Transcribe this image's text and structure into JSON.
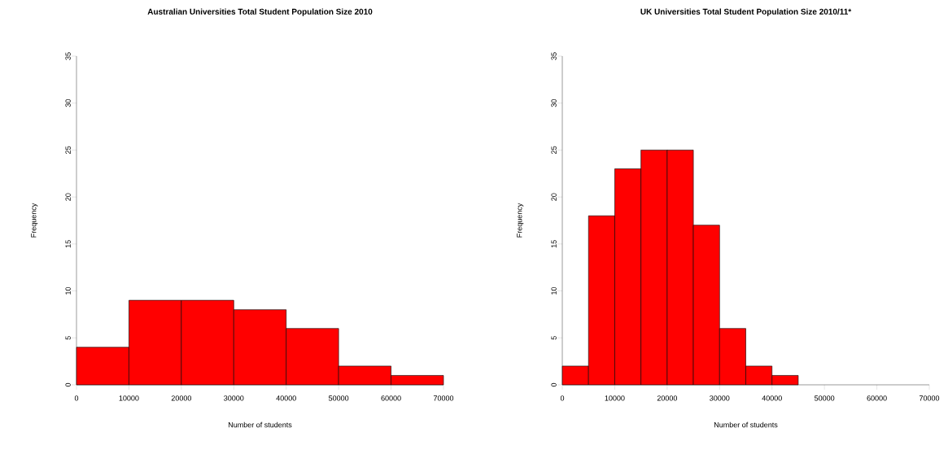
{
  "chart_data": [
    {
      "type": "histogram",
      "title": "Australian Universities Total Student Population Size 2010",
      "xlabel": "Number of students",
      "ylabel": "Frequency",
      "bins": [
        0,
        10000,
        20000,
        30000,
        40000,
        50000,
        60000,
        70000
      ],
      "values": [
        4,
        9,
        9,
        8,
        6,
        2,
        1
      ],
      "color": "#ff0000",
      "xlim": [
        0,
        70000
      ],
      "ylim": [
        0,
        35
      ],
      "xticks": [
        0,
        10000,
        20000,
        30000,
        40000,
        50000,
        60000,
        70000
      ],
      "yticks": [
        0,
        5,
        10,
        15,
        20,
        25,
        30,
        35
      ]
    },
    {
      "type": "histogram",
      "title": "UK Universities Total Student Population Size 2010/11*",
      "xlabel": "Number of students",
      "ylabel": "Frequency",
      "bins": [
        0,
        5000,
        10000,
        15000,
        20000,
        25000,
        30000,
        35000,
        40000,
        45000
      ],
      "values": [
        2,
        18,
        23,
        25,
        25,
        17,
        6,
        2,
        1
      ],
      "color": "#ff0000",
      "xlim": [
        0,
        70000
      ],
      "ylim": [
        0,
        35
      ],
      "xticks": [
        0,
        10000,
        20000,
        30000,
        40000,
        50000,
        60000,
        70000
      ],
      "yticks": [
        0,
        5,
        10,
        15,
        20,
        25,
        30,
        35
      ]
    }
  ]
}
